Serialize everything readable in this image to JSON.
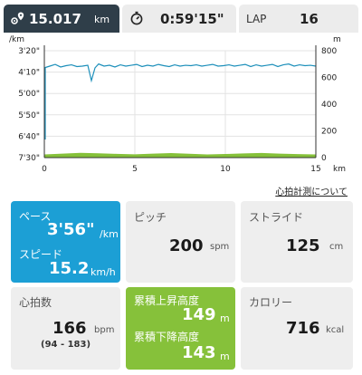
{
  "summary": {
    "distance_value": "15.017",
    "distance_unit": "km",
    "time_value": "0:59'15\"",
    "lap_label": "LAP",
    "lap_value": "16"
  },
  "chart_data": {
    "type": "line",
    "left_axis_label": "/km",
    "right_axis_label": "m",
    "x_axis_unit": "km",
    "x_ticks": [
      "0",
      "5",
      "10",
      "15"
    ],
    "xlim": [
      0,
      15
    ],
    "pace_ticks": [
      "3'20\"",
      "4'10\"",
      "5'00\"",
      "5'50\"",
      "6'40\"",
      "7'30\""
    ],
    "pace_lim_seconds": [
      200,
      450
    ],
    "altitude_ticks": [
      "800",
      "600",
      "400",
      "200",
      "0"
    ],
    "altitude_lim": [
      0,
      800
    ],
    "series": [
      {
        "x": [
          0.0,
          0.3,
          0.6,
          0.9,
          1.2,
          1.5,
          1.8,
          2.1,
          2.4,
          2.6,
          2.8,
          3.0,
          3.3,
          3.6,
          3.9,
          4.2,
          4.5,
          4.8,
          5.1,
          5.4,
          5.7,
          6.0,
          6.3,
          6.6,
          6.9,
          7.2,
          7.5,
          7.8,
          8.1,
          8.4,
          8.7,
          9.0,
          9.3,
          9.6,
          9.9,
          10.2,
          10.5,
          10.8,
          11.1,
          11.4,
          11.7,
          12.0,
          12.3,
          12.6,
          12.9,
          13.2,
          13.5,
          13.8,
          14.1,
          14.4,
          14.7,
          15.0
        ],
        "y": [
          240,
          236,
          232,
          238,
          235,
          233,
          237,
          236,
          234,
          270,
          240,
          231,
          236,
          234,
          238,
          233,
          236,
          234,
          232,
          237,
          234,
          236,
          232,
          235,
          237,
          233,
          236,
          234,
          235,
          233,
          236,
          234,
          232,
          236,
          235,
          233,
          236,
          234,
          232,
          237,
          233,
          236,
          234,
          232,
          237,
          233,
          231,
          236,
          233,
          235,
          234,
          236
        ]
      },
      {
        "x": [
          0,
          1,
          2,
          3,
          4,
          5,
          6,
          7,
          8,
          9,
          10,
          11,
          12,
          13,
          14,
          15
        ],
        "y": [
          24,
          30,
          36,
          32,
          28,
          25,
          30,
          34,
          29,
          24,
          27,
          31,
          35,
          30,
          26,
          24
        ]
      }
    ]
  },
  "hr_link_text": "心拍計測について",
  "pace": {
    "pace_label": "ペース",
    "pace_value": "3'56\"",
    "pace_unit": "/km",
    "speed_label": "スピード",
    "speed_value": "15.2",
    "speed_unit": "km/h"
  },
  "pitch": {
    "label": "ピッチ",
    "value": "200",
    "unit": "spm"
  },
  "stride": {
    "label": "ストライド",
    "value": "125",
    "unit": "cm"
  },
  "heart_rate": {
    "label": "心拍数",
    "value": "166",
    "unit": "bpm",
    "range": "(94 - 183)"
  },
  "altitude": {
    "ascent_label": "累積上昇高度",
    "ascent_value": "149",
    "ascent_unit": "m",
    "descent_label": "累積下降高度",
    "descent_value": "143",
    "descent_unit": "m"
  },
  "calories": {
    "label": "カロリー",
    "value": "716",
    "unit": "kcal"
  },
  "colors": {
    "pace_line": "#1c8fba",
    "altitude_fill": "#86c13a",
    "pace_card": "#1c9fd5",
    "altitude_card": "#86c13a",
    "active_tab": "#2f3e49"
  }
}
